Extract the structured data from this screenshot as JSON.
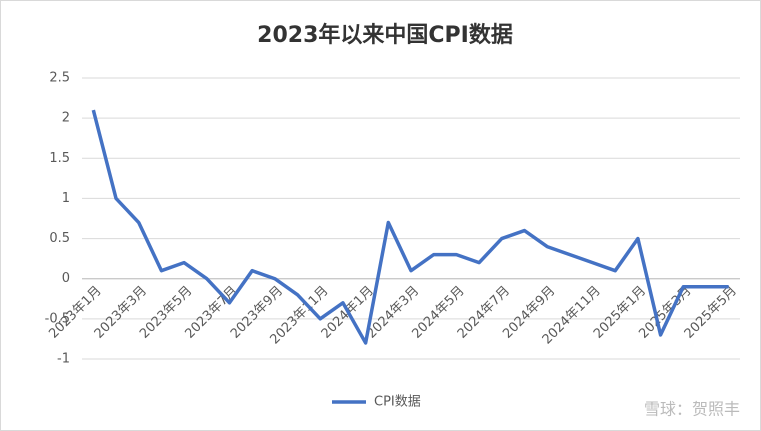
{
  "chart_data": {
    "type": "line",
    "title": "2023年以来中国CPI数据",
    "categories": [
      "2023年1月",
      null,
      "2023年3月",
      null,
      "2023年5月",
      null,
      "2023年7月",
      null,
      "2023年9月",
      null,
      "2023年11月",
      null,
      "2024年1月",
      null,
      "2024年3月",
      null,
      "2024年5月",
      null,
      "2024年7月",
      null,
      "2024年9月",
      null,
      "2024年11月",
      null,
      "2025年1月",
      null,
      "2025年3月",
      null,
      "2025年5月"
    ],
    "series": [
      {
        "name": "CPI数据",
        "color": "#4472c4",
        "values": [
          2.1,
          1.0,
          0.7,
          0.1,
          0.2,
          0.0,
          -0.3,
          0.1,
          0.0,
          -0.2,
          -0.5,
          -0.3,
          -0.8,
          0.7,
          0.1,
          0.3,
          0.3,
          0.2,
          0.5,
          0.6,
          0.4,
          0.3,
          0.2,
          0.1,
          0.5,
          -0.7,
          -0.1,
          -0.1,
          -0.1
        ]
      }
    ],
    "ylim": [
      -1,
      2.5
    ],
    "yticks": [
      -1,
      -0.5,
      0,
      0.5,
      1,
      1.5,
      2,
      2.5
    ],
    "grid": true,
    "legend": "bottom",
    "watermark": "雪球：贺照丰"
  }
}
